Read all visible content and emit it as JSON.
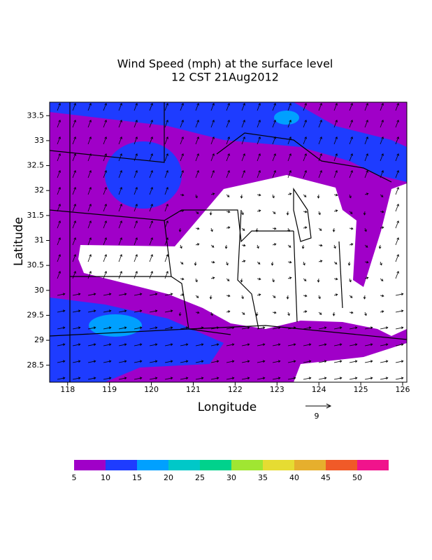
{
  "title": [
    "Wind Speed (mph) at the surface level",
    "12 CST 21Aug2012"
  ],
  "x_axis": {
    "label": "Longitude",
    "xlim": [
      117.57,
      126.1
    ],
    "xticks": [
      118,
      119,
      120,
      121,
      122,
      123,
      124,
      125,
      126
    ]
  },
  "y_axis": {
    "label": "Latitude",
    "ylim": [
      28.16,
      33.77
    ],
    "yticks": [
      28.5,
      29,
      29.5,
      30,
      30.5,
      31,
      31.5,
      32,
      32.5,
      33,
      33.5
    ]
  },
  "reference_vector": {
    "label": "9"
  },
  "colorbar": {
    "levels": [
      5,
      10,
      15,
      20,
      25,
      30,
      35,
      40,
      45,
      50
    ],
    "colors": [
      "#a000c8",
      "#1e3cff",
      "#00a0ff",
      "#00c8c8",
      "#00d28c",
      "#a0e632",
      "#e6dc32",
      "#e6af2d",
      "#f05a28",
      "#f0148c"
    ]
  }
}
